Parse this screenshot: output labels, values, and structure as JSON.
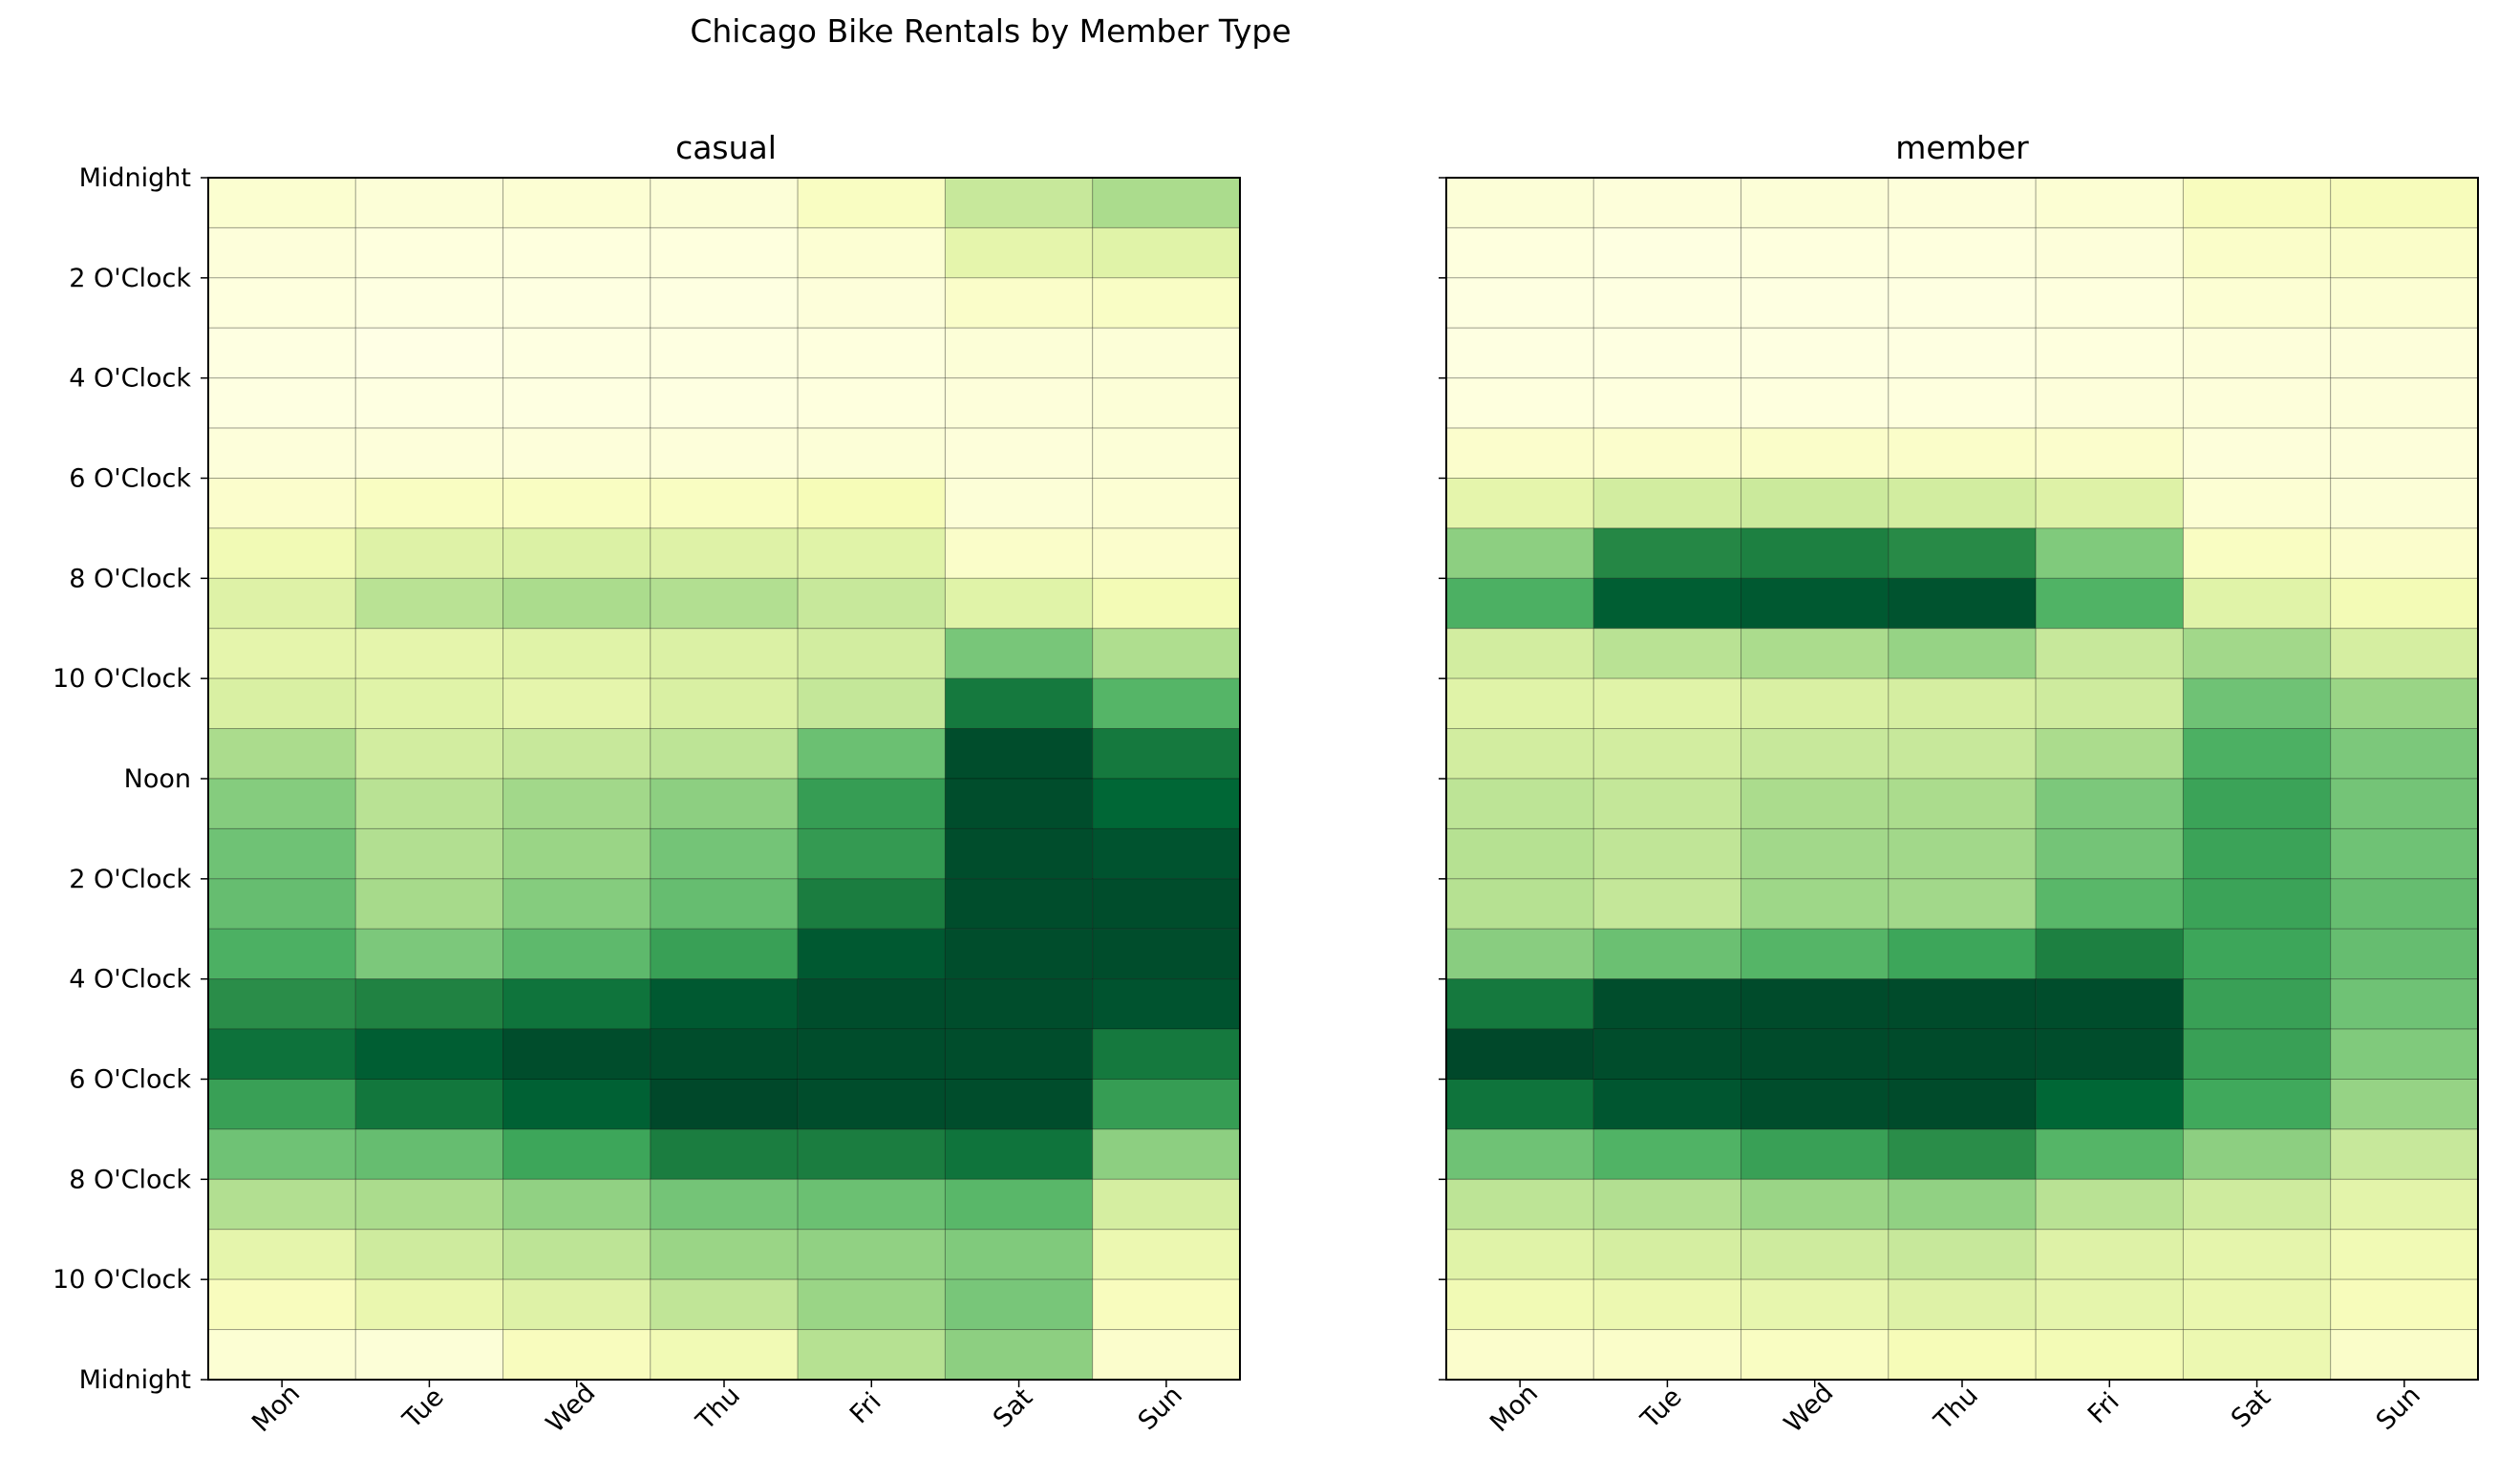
{
  "chart_data": {
    "type": "heatmap",
    "title": "Chicago Bike Rentals by Member Type",
    "x_categories": [
      "Mon",
      "Tue",
      "Wed",
      "Thu",
      "Fri",
      "Sat",
      "Sun"
    ],
    "y_tick_labels": [
      "Midnight",
      "2 O'Clock",
      "4 O'Clock",
      "6 O'Clock",
      "8 O'Clock",
      "10 O'Clock",
      "Noon",
      "2 O'Clock",
      "4 O'Clock",
      "6 O'Clock",
      "8 O'Clock",
      "10 O'Clock",
      "Midnight"
    ],
    "y_range_hours": [
      0,
      24
    ],
    "colormap": [
      "#ffffe5",
      "#f7fcb9",
      "#d9f0a3",
      "#addd8e",
      "#78c679",
      "#41ab5d",
      "#238443",
      "#006837",
      "#004529"
    ],
    "value_scale": "relative intensity 0-1 (no colorbar shown)",
    "grid": true,
    "panels": [
      {
        "title": "casual",
        "values": [
          [
            0.06,
            0.04,
            0.05,
            0.04,
            0.1,
            0.3,
            0.38
          ],
          [
            0.03,
            0.02,
            0.02,
            0.02,
            0.05,
            0.2,
            0.22
          ],
          [
            0.02,
            0.01,
            0.01,
            0.01,
            0.03,
            0.08,
            0.09
          ],
          [
            0.01,
            0.0,
            0.01,
            0.01,
            0.02,
            0.04,
            0.04
          ],
          [
            0.01,
            0.01,
            0.01,
            0.01,
            0.02,
            0.03,
            0.04
          ],
          [
            0.03,
            0.03,
            0.03,
            0.03,
            0.04,
            0.03,
            0.04
          ],
          [
            0.07,
            0.1,
            0.1,
            0.1,
            0.13,
            0.04,
            0.05
          ],
          [
            0.15,
            0.23,
            0.24,
            0.23,
            0.22,
            0.08,
            0.07
          ],
          [
            0.23,
            0.34,
            0.38,
            0.36,
            0.3,
            0.22,
            0.14
          ],
          [
            0.2,
            0.2,
            0.22,
            0.24,
            0.27,
            0.5,
            0.37
          ],
          [
            0.25,
            0.22,
            0.2,
            0.25,
            0.31,
            0.8,
            0.58
          ],
          [
            0.38,
            0.27,
            0.3,
            0.33,
            0.53,
            0.97,
            0.8
          ],
          [
            0.47,
            0.34,
            0.4,
            0.45,
            0.67,
            0.97,
            0.88
          ],
          [
            0.52,
            0.36,
            0.42,
            0.51,
            0.68,
            0.97,
            0.95
          ],
          [
            0.54,
            0.39,
            0.47,
            0.54,
            0.78,
            0.97,
            0.97
          ],
          [
            0.6,
            0.49,
            0.56,
            0.66,
            0.93,
            0.97,
            0.97
          ],
          [
            0.72,
            0.76,
            0.82,
            0.93,
            0.97,
            0.97,
            0.95
          ],
          [
            0.83,
            0.91,
            0.97,
            0.97,
            0.97,
            0.97,
            0.8
          ],
          [
            0.66,
            0.81,
            0.9,
            0.99,
            0.97,
            0.97,
            0.67
          ],
          [
            0.52,
            0.54,
            0.64,
            0.78,
            0.78,
            0.82,
            0.45
          ],
          [
            0.36,
            0.38,
            0.44,
            0.51,
            0.53,
            0.57,
            0.26
          ],
          [
            0.2,
            0.28,
            0.33,
            0.42,
            0.44,
            0.48,
            0.17
          ],
          [
            0.11,
            0.18,
            0.23,
            0.32,
            0.42,
            0.5,
            0.11
          ],
          [
            0.05,
            0.04,
            0.11,
            0.15,
            0.35,
            0.45,
            0.07
          ]
        ]
      },
      {
        "title": "member",
        "values": [
          [
            0.04,
            0.03,
            0.04,
            0.03,
            0.05,
            0.11,
            0.12
          ],
          [
            0.02,
            0.01,
            0.02,
            0.02,
            0.03,
            0.08,
            0.08
          ],
          [
            0.01,
            0.01,
            0.01,
            0.01,
            0.02,
            0.05,
            0.05
          ],
          [
            0.01,
            0.01,
            0.01,
            0.01,
            0.02,
            0.03,
            0.03
          ],
          [
            0.02,
            0.02,
            0.02,
            0.02,
            0.03,
            0.03,
            0.03
          ],
          [
            0.07,
            0.07,
            0.08,
            0.08,
            0.07,
            0.03,
            0.03
          ],
          [
            0.2,
            0.27,
            0.29,
            0.27,
            0.23,
            0.05,
            0.04
          ],
          [
            0.45,
            0.74,
            0.77,
            0.73,
            0.48,
            0.1,
            0.07
          ],
          [
            0.6,
            0.91,
            0.93,
            0.95,
            0.59,
            0.22,
            0.14
          ],
          [
            0.27,
            0.34,
            0.38,
            0.43,
            0.3,
            0.4,
            0.26
          ],
          [
            0.22,
            0.22,
            0.25,
            0.26,
            0.28,
            0.52,
            0.42
          ],
          [
            0.27,
            0.27,
            0.3,
            0.3,
            0.38,
            0.6,
            0.49
          ],
          [
            0.33,
            0.31,
            0.38,
            0.38,
            0.49,
            0.65,
            0.51
          ],
          [
            0.35,
            0.32,
            0.4,
            0.4,
            0.51,
            0.65,
            0.52
          ],
          [
            0.35,
            0.31,
            0.41,
            0.4,
            0.57,
            0.65,
            0.54
          ],
          [
            0.46,
            0.53,
            0.58,
            0.64,
            0.77,
            0.64,
            0.54
          ],
          [
            0.8,
            0.97,
            0.98,
            0.98,
            0.97,
            0.66,
            0.52
          ],
          [
            0.99,
            0.97,
            0.98,
            0.98,
            0.97,
            0.66,
            0.48
          ],
          [
            0.82,
            0.94,
            0.97,
            0.98,
            0.88,
            0.63,
            0.43
          ],
          [
            0.52,
            0.59,
            0.66,
            0.72,
            0.58,
            0.45,
            0.3
          ],
          [
            0.33,
            0.36,
            0.42,
            0.44,
            0.34,
            0.28,
            0.21
          ],
          [
            0.22,
            0.26,
            0.28,
            0.3,
            0.23,
            0.2,
            0.15
          ],
          [
            0.15,
            0.17,
            0.19,
            0.23,
            0.2,
            0.18,
            0.12
          ],
          [
            0.07,
            0.08,
            0.1,
            0.13,
            0.14,
            0.17,
            0.08
          ]
        ]
      }
    ]
  }
}
